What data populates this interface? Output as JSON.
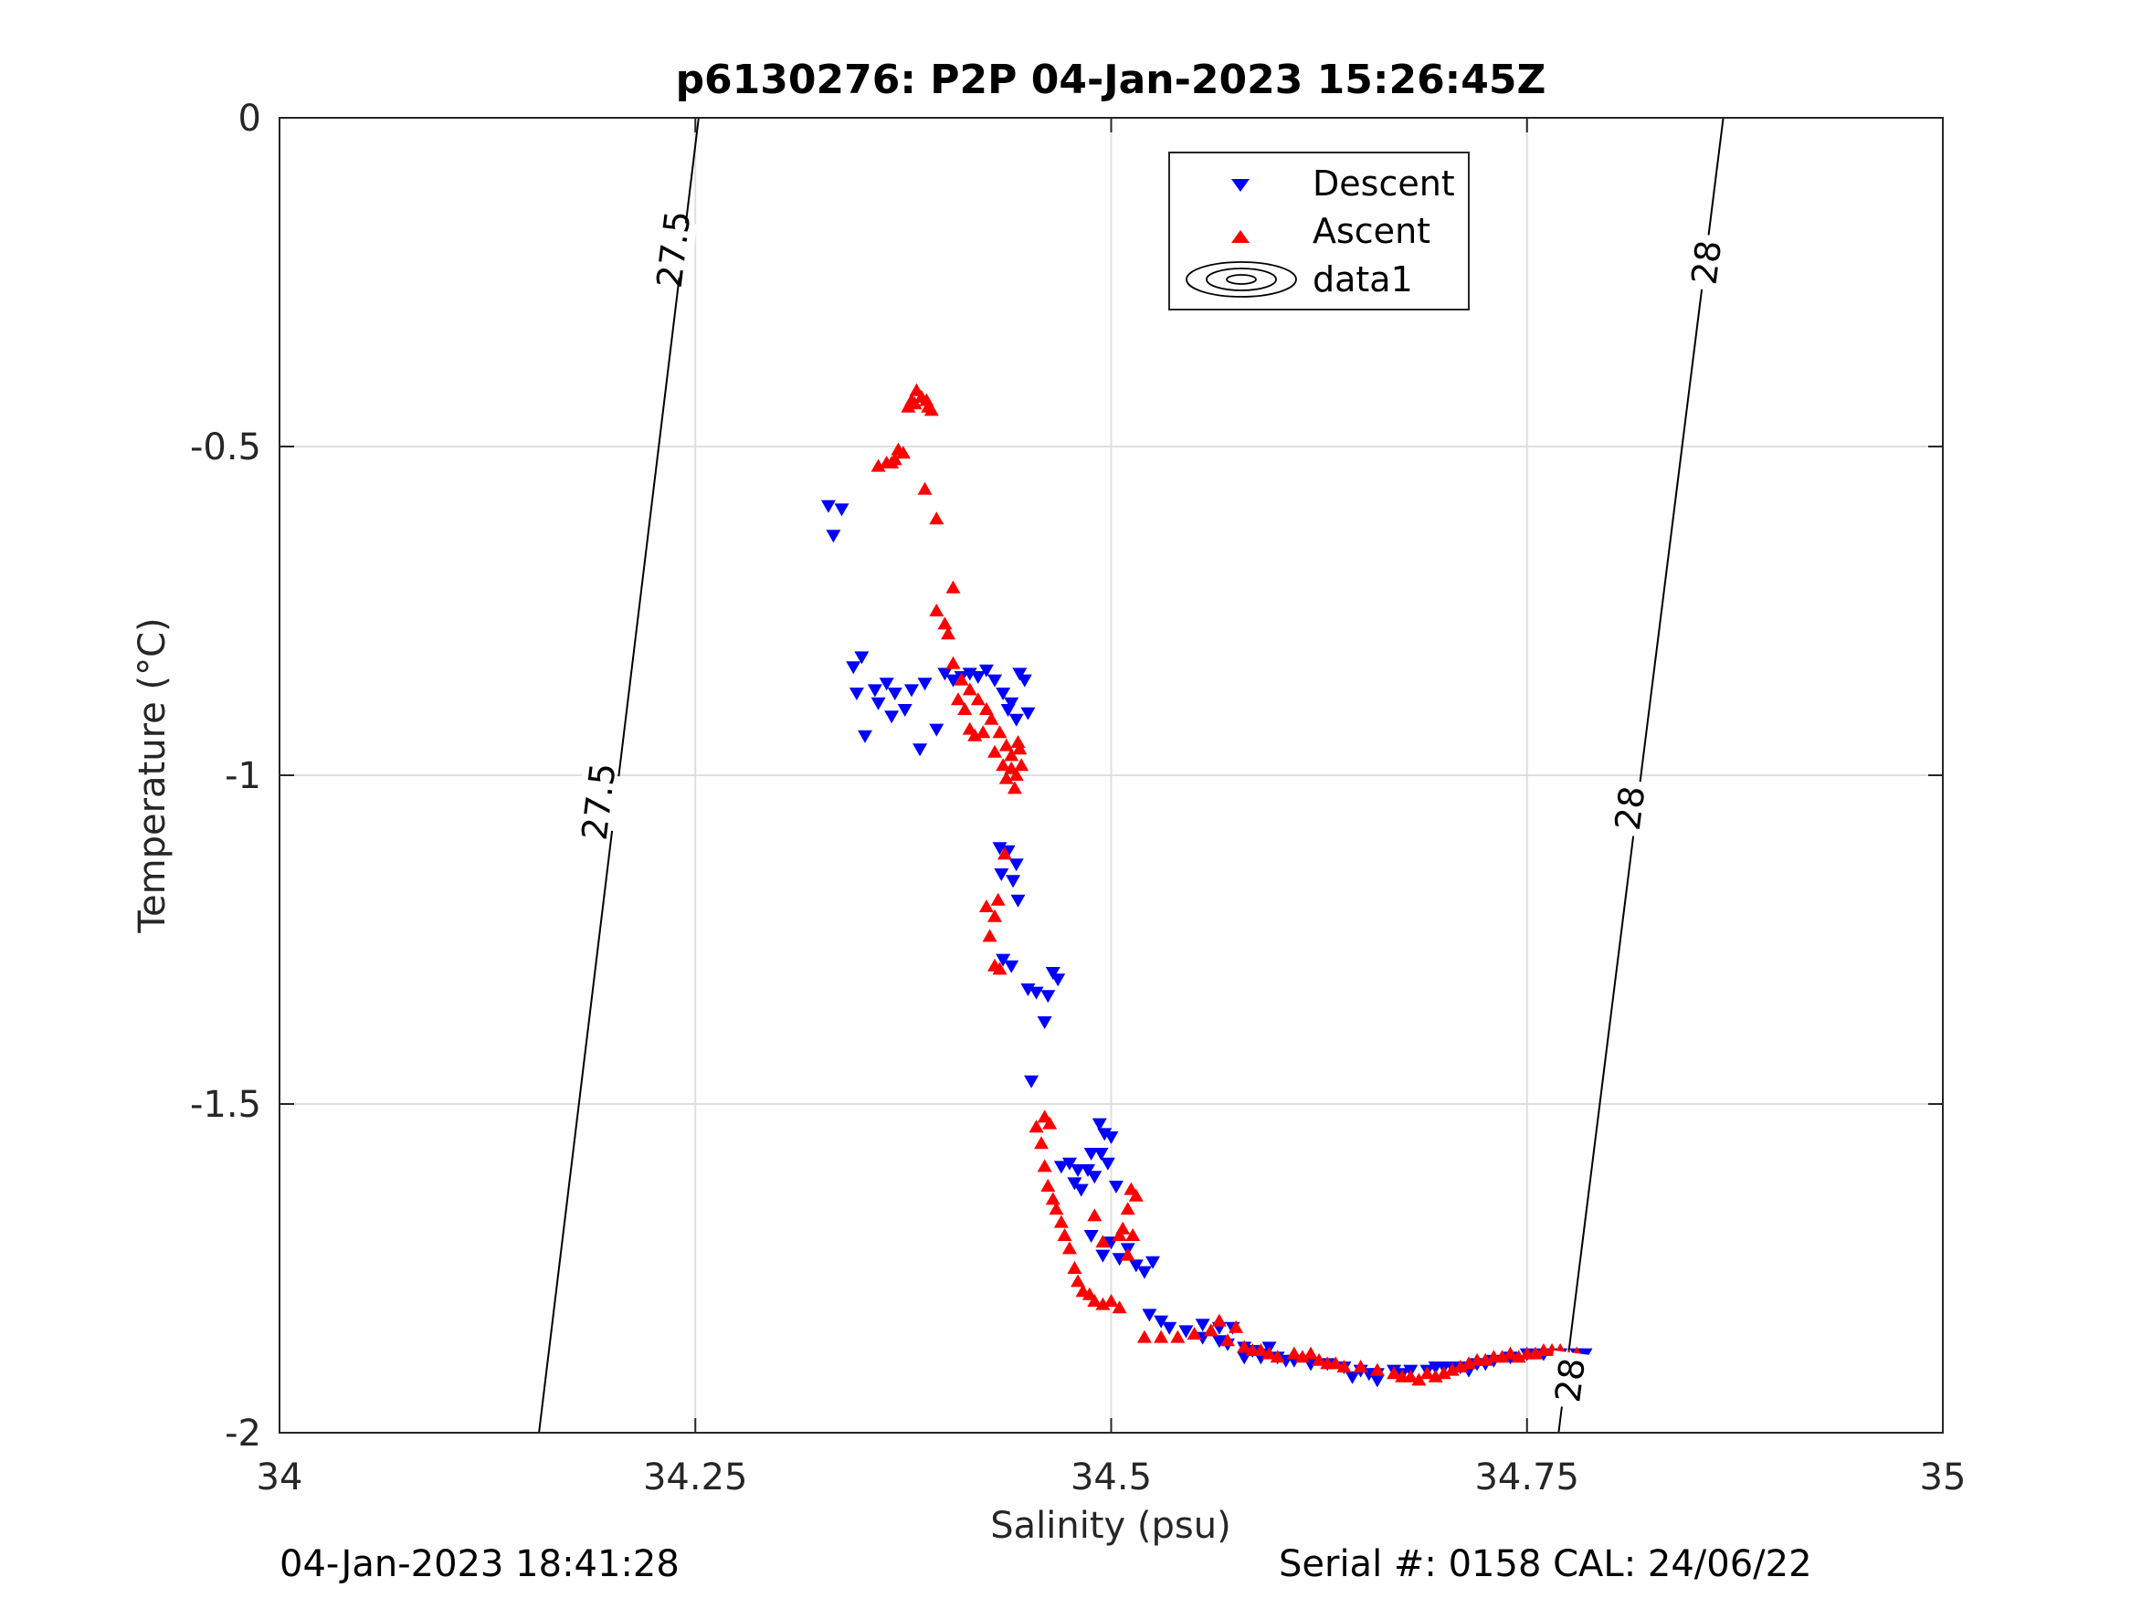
{
  "chart_data": {
    "type": "scatter",
    "title": "p6130276: P2P 04-Jan-2023 15:26:45Z",
    "xlabel": "Salinity (psu)",
    "ylabel": "Temperature (°C)",
    "xlim": [
      34,
      35
    ],
    "ylim": [
      -2,
      0
    ],
    "xticks": [
      34,
      34.25,
      34.5,
      34.75,
      35
    ],
    "xtick_labels": [
      "34",
      "34.25",
      "34.5",
      "34.75",
      "35"
    ],
    "yticks": [
      0,
      -0.5,
      -1,
      -1.5,
      -2
    ],
    "ytick_labels": [
      "0",
      "-0.5",
      "-1",
      "-1.5",
      "-2"
    ],
    "grid": true,
    "legend_position": "top-center",
    "legend": [
      {
        "label": "Descent",
        "marker": "triangle-down",
        "color": "#0000ff"
      },
      {
        "label": "Ascent",
        "marker": "triangle-up",
        "color": "#ff0000"
      },
      {
        "label": "data1",
        "marker": "contour",
        "color": "#000000"
      }
    ],
    "contours": [
      {
        "level": 27.5,
        "points": [
          [
            34.252,
            0
          ],
          [
            34.156,
            -2
          ]
        ],
        "labels": [
          "27.5",
          "27.5"
        ],
        "label_positions": [
          [
            34.237,
            -0.2
          ],
          [
            34.192,
            -1.04
          ]
        ]
      },
      {
        "level": 28,
        "points": [
          [
            34.868,
            0
          ],
          [
            34.769,
            -2
          ]
        ],
        "labels": [
          "28",
          "28",
          "28"
        ],
        "label_positions": [
          [
            34.858,
            -0.22
          ],
          [
            34.812,
            -1.05
          ],
          [
            34.776,
            -1.92
          ]
        ]
      }
    ],
    "series": [
      {
        "name": "Descent",
        "color": "#0000ff",
        "marker": "triangle-down",
        "points": [
          [
            34.33,
            -0.59
          ],
          [
            34.338,
            -0.595
          ],
          [
            34.333,
            -0.635
          ],
          [
            34.345,
            -0.835
          ],
          [
            34.35,
            -0.82
          ],
          [
            34.347,
            -0.875
          ],
          [
            34.358,
            -0.87
          ],
          [
            34.365,
            -0.86
          ],
          [
            34.36,
            -0.89
          ],
          [
            34.37,
            -0.875
          ],
          [
            34.352,
            -0.94
          ],
          [
            34.368,
            -0.91
          ],
          [
            34.376,
            -0.9
          ],
          [
            34.38,
            -0.87
          ],
          [
            34.388,
            -0.86
          ],
          [
            34.385,
            -0.96
          ],
          [
            34.395,
            -0.93
          ],
          [
            34.4,
            -0.845
          ],
          [
            34.405,
            -0.855
          ],
          [
            34.41,
            -0.85
          ],
          [
            34.415,
            -0.845
          ],
          [
            34.42,
            -0.85
          ],
          [
            34.425,
            -0.84
          ],
          [
            34.43,
            -0.855
          ],
          [
            34.435,
            -0.875
          ],
          [
            34.44,
            -0.89
          ],
          [
            34.445,
            -0.845
          ],
          [
            34.45,
            -0.905
          ],
          [
            34.438,
            -0.9
          ],
          [
            34.443,
            -0.915
          ],
          [
            34.448,
            -0.855
          ],
          [
            34.433,
            -1.11
          ],
          [
            34.438,
            -1.115
          ],
          [
            34.443,
            -1.135
          ],
          [
            34.441,
            -1.16
          ],
          [
            34.434,
            -1.15
          ],
          [
            34.444,
            -1.19
          ],
          [
            34.435,
            -1.28
          ],
          [
            34.45,
            -1.325
          ],
          [
            34.455,
            -1.33
          ],
          [
            34.465,
            -1.3
          ],
          [
            34.462,
            -1.335
          ],
          [
            34.468,
            -1.31
          ],
          [
            34.46,
            -1.375
          ],
          [
            34.44,
            -1.29
          ],
          [
            34.452,
            -1.465
          ],
          [
            34.47,
            -1.595
          ],
          [
            34.475,
            -1.59
          ],
          [
            34.478,
            -1.62
          ],
          [
            34.482,
            -1.63
          ],
          [
            34.486,
            -1.6
          ],
          [
            34.49,
            -1.61
          ],
          [
            34.488,
            -1.575
          ],
          [
            34.494,
            -1.575
          ],
          [
            34.496,
            -1.545
          ],
          [
            34.493,
            -1.53
          ],
          [
            34.5,
            -1.55
          ],
          [
            34.498,
            -1.59
          ],
          [
            34.503,
            -1.625
          ],
          [
            34.48,
            -1.6
          ],
          [
            34.488,
            -1.7
          ],
          [
            34.495,
            -1.73
          ],
          [
            34.5,
            -1.71
          ],
          [
            34.505,
            -1.735
          ],
          [
            34.51,
            -1.72
          ],
          [
            34.515,
            -1.745
          ],
          [
            34.525,
            -1.74
          ],
          [
            34.52,
            -1.755
          ],
          [
            34.523,
            -1.82
          ],
          [
            34.53,
            -1.83
          ],
          [
            34.535,
            -1.84
          ],
          [
            34.545,
            -1.845
          ],
          [
            34.555,
            -1.835
          ],
          [
            34.565,
            -1.84
          ],
          [
            34.573,
            -1.84
          ],
          [
            34.565,
            -1.86
          ],
          [
            34.555,
            -1.855
          ],
          [
            34.57,
            -1.865
          ],
          [
            34.58,
            -1.87
          ],
          [
            34.59,
            -1.88
          ],
          [
            34.6,
            -1.885
          ],
          [
            34.61,
            -1.89
          ],
          [
            34.62,
            -1.895
          ],
          [
            34.63,
            -1.895
          ],
          [
            34.64,
            -1.9
          ],
          [
            34.65,
            -1.905
          ],
          [
            34.655,
            -1.91
          ],
          [
            34.66,
            -1.91
          ],
          [
            34.67,
            -1.905
          ],
          [
            34.675,
            -1.91
          ],
          [
            34.68,
            -1.905
          ],
          [
            34.69,
            -1.905
          ],
          [
            34.7,
            -1.9
          ],
          [
            34.71,
            -1.9
          ],
          [
            34.72,
            -1.895
          ],
          [
            34.73,
            -1.89
          ],
          [
            34.74,
            -1.885
          ],
          [
            34.75,
            -1.88
          ],
          [
            34.76,
            -1.88
          ],
          [
            34.77,
            -1.88
          ],
          [
            34.78,
            -1.88
          ],
          [
            34.785,
            -1.88
          ],
          [
            34.58,
            -1.885
          ],
          [
            34.585,
            -1.875
          ],
          [
            34.59,
            -1.885
          ],
          [
            34.595,
            -1.87
          ],
          [
            34.605,
            -1.89
          ],
          [
            34.645,
            -1.915
          ],
          [
            34.66,
            -1.92
          ],
          [
            34.695,
            -1.9
          ],
          [
            34.705,
            -1.9
          ],
          [
            34.715,
            -1.905
          ],
          [
            34.725,
            -1.895
          ]
        ]
      },
      {
        "name": "Ascent",
        "color": "#ff0000",
        "marker": "triangle-up",
        "points": [
          [
            34.36,
            -0.53
          ],
          [
            34.365,
            -0.525
          ],
          [
            34.37,
            -0.52
          ],
          [
            34.375,
            -0.51
          ],
          [
            34.368,
            -0.525
          ],
          [
            34.372,
            -0.505
          ],
          [
            34.38,
            -0.43
          ],
          [
            34.383,
            -0.415
          ],
          [
            34.386,
            -0.425
          ],
          [
            34.389,
            -0.43
          ],
          [
            34.378,
            -0.44
          ],
          [
            34.382,
            -0.435
          ],
          [
            34.39,
            -0.44
          ],
          [
            34.392,
            -0.445
          ],
          [
            34.388,
            -0.565
          ],
          [
            34.395,
            -0.61
          ],
          [
            34.405,
            -0.715
          ],
          [
            34.395,
            -0.75
          ],
          [
            34.4,
            -0.77
          ],
          [
            34.402,
            -0.785
          ],
          [
            34.405,
            -0.83
          ],
          [
            34.41,
            -0.855
          ],
          [
            34.408,
            -0.885
          ],
          [
            34.412,
            -0.9
          ],
          [
            34.415,
            -0.87
          ],
          [
            34.42,
            -0.885
          ],
          [
            34.425,
            -0.9
          ],
          [
            34.415,
            -0.93
          ],
          [
            34.418,
            -0.94
          ],
          [
            34.423,
            -0.935
          ],
          [
            34.428,
            -0.915
          ],
          [
            34.433,
            -0.935
          ],
          [
            34.437,
            -0.955
          ],
          [
            34.44,
            -0.97
          ],
          [
            34.43,
            -0.965
          ],
          [
            34.435,
            -0.985
          ],
          [
            34.44,
            -0.99
          ],
          [
            34.443,
            -1.0
          ],
          [
            34.445,
            -0.96
          ],
          [
            34.442,
            -1.02
          ],
          [
            34.437,
            -1.005
          ],
          [
            34.444,
            -0.95
          ],
          [
            34.446,
            -0.985
          ],
          [
            34.425,
            -1.2
          ],
          [
            34.43,
            -1.215
          ],
          [
            34.427,
            -1.245
          ],
          [
            34.432,
            -1.19
          ],
          [
            34.436,
            -1.12
          ],
          [
            34.43,
            -1.29
          ],
          [
            34.433,
            -1.295
          ],
          [
            34.455,
            -1.535
          ],
          [
            34.46,
            -1.52
          ],
          [
            34.463,
            -1.53
          ],
          [
            34.458,
            -1.56
          ],
          [
            34.46,
            -1.595
          ],
          [
            34.462,
            -1.625
          ],
          [
            34.465,
            -1.645
          ],
          [
            34.467,
            -1.66
          ],
          [
            34.47,
            -1.68
          ],
          [
            34.472,
            -1.7
          ],
          [
            34.475,
            -1.72
          ],
          [
            34.478,
            -1.75
          ],
          [
            34.48,
            -1.77
          ],
          [
            34.483,
            -1.785
          ],
          [
            34.487,
            -1.79
          ],
          [
            34.49,
            -1.8
          ],
          [
            34.495,
            -1.805
          ],
          [
            34.5,
            -1.8
          ],
          [
            34.505,
            -1.81
          ],
          [
            34.49,
            -1.67
          ],
          [
            34.495,
            -1.71
          ],
          [
            34.505,
            -1.7
          ],
          [
            34.51,
            -1.66
          ],
          [
            34.512,
            -1.63
          ],
          [
            34.515,
            -1.64
          ],
          [
            34.507,
            -1.69
          ],
          [
            34.51,
            -1.73
          ],
          [
            34.513,
            -1.7
          ],
          [
            34.52,
            -1.855
          ],
          [
            34.53,
            -1.855
          ],
          [
            34.54,
            -1.855
          ],
          [
            34.55,
            -1.85
          ],
          [
            34.56,
            -1.845
          ],
          [
            34.565,
            -1.83
          ],
          [
            34.57,
            -1.86
          ],
          [
            34.58,
            -1.87
          ],
          [
            34.59,
            -1.875
          ],
          [
            34.6,
            -1.885
          ],
          [
            34.61,
            -1.88
          ],
          [
            34.62,
            -1.88
          ],
          [
            34.63,
            -1.895
          ],
          [
            34.64,
            -1.9
          ],
          [
            34.65,
            -1.9
          ],
          [
            34.66,
            -1.905
          ],
          [
            34.67,
            -1.91
          ],
          [
            34.68,
            -1.915
          ],
          [
            34.69,
            -1.91
          ],
          [
            34.7,
            -1.91
          ],
          [
            34.71,
            -1.9
          ],
          [
            34.72,
            -1.89
          ],
          [
            34.73,
            -1.885
          ],
          [
            34.74,
            -1.88
          ],
          [
            34.75,
            -1.88
          ],
          [
            34.76,
            -1.875
          ],
          [
            34.77,
            -1.875
          ],
          [
            34.78,
            -1.88
          ],
          [
            34.575,
            -1.84
          ],
          [
            34.585,
            -1.875
          ],
          [
            34.595,
            -1.88
          ],
          [
            34.615,
            -1.885
          ],
          [
            34.625,
            -1.89
          ],
          [
            34.635,
            -1.895
          ],
          [
            34.675,
            -1.915
          ],
          [
            34.685,
            -1.92
          ],
          [
            34.695,
            -1.915
          ],
          [
            34.705,
            -1.905
          ],
          [
            34.715,
            -1.895
          ],
          [
            34.725,
            -1.89
          ],
          [
            34.735,
            -1.885
          ],
          [
            34.745,
            -1.885
          ],
          [
            34.755,
            -1.88
          ],
          [
            34.765,
            -1.875
          ],
          [
            34.775,
            -1.885
          ]
        ]
      }
    ]
  },
  "footer": {
    "timestamp": "04-Jan-2023 18:41:28",
    "serial_cal": "Serial #: 0158  CAL: 24/06/22"
  }
}
